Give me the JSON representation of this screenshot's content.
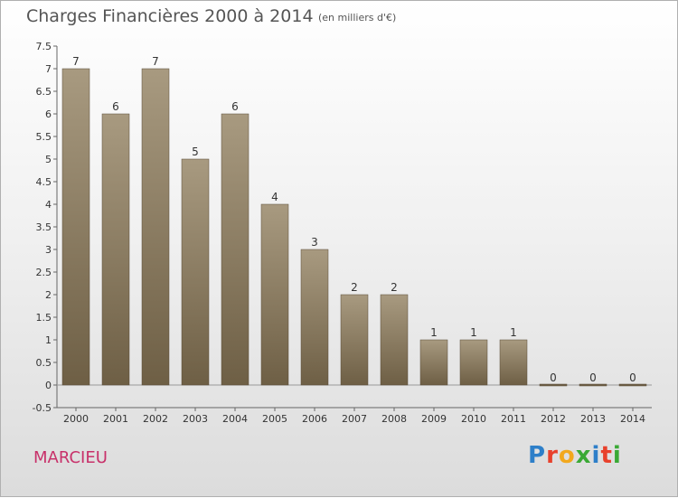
{
  "header": {
    "title": "Charges Financières 2000 à 2014",
    "unit": "(en milliers d'€)"
  },
  "footer": {
    "commune": "MARCIEU",
    "logo_text": "Proxiti",
    "logo_colors": [
      "#2e7fc9",
      "#e8412c",
      "#f2a81d",
      "#3aa935",
      "#2e7fc9",
      "#e8412c",
      "#3aa935"
    ]
  },
  "colors": {
    "bar_top": "#a89a80",
    "bar_bottom": "#6e5f45",
    "axis": "#666666",
    "commune": "#c8316a"
  },
  "chart_data": {
    "type": "bar",
    "title": "Charges Financières 2000 à 2014",
    "categories": [
      "2000",
      "2001",
      "2002",
      "2003",
      "2004",
      "2005",
      "2006",
      "2007",
      "2008",
      "2009",
      "2010",
      "2011",
      "2012",
      "2013",
      "2014"
    ],
    "values": [
      7,
      6,
      7,
      5,
      6,
      4,
      3,
      2,
      2,
      1,
      1,
      1,
      0,
      0,
      0
    ],
    "data_labels": [
      "7",
      "6",
      "7",
      "5",
      "6",
      "4",
      "3",
      "2",
      "2",
      "1",
      "1",
      "1",
      "0",
      "0",
      "0"
    ],
    "yticks": [
      "-0.5",
      "0",
      "0.5",
      "1",
      "1.5",
      "2",
      "2.5",
      "3",
      "3.5",
      "4",
      "4.5",
      "5",
      "5.5",
      "6",
      "6.5",
      "7",
      "7.5"
    ],
    "ylim": [
      -0.5,
      7.5
    ],
    "xlabel": "",
    "ylabel": "",
    "grid": false,
    "legend": "none"
  }
}
